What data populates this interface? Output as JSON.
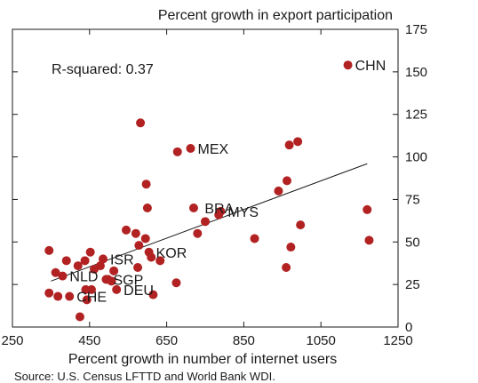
{
  "chart_data": {
    "type": "scatter",
    "title": "Percent growth in export participation",
    "xlabel": "Percent growth in number of internet users",
    "ylabel": "",
    "source": "Source: U.S. Census LFTTD and World Bank WDI.",
    "annotation": "R-squared: 0.37",
    "xlim": [
      250,
      1250
    ],
    "ylim": [
      0,
      175
    ],
    "xticks": [
      "250",
      "450",
      "650",
      "850",
      "1050",
      "1250"
    ],
    "yticks": [
      "0",
      "25",
      "50",
      "75",
      "100",
      "125",
      "150",
      "175"
    ],
    "marker_color": "#b22222",
    "trendline": {
      "x": [
        350,
        1170
      ],
      "y": [
        27,
        96
      ]
    },
    "points": [
      {
        "x": 345,
        "y": 45
      },
      {
        "x": 345,
        "y": 20
      },
      {
        "x": 362,
        "y": 32
      },
      {
        "x": 368,
        "y": 18
      },
      {
        "x": 380,
        "y": 30
      },
      {
        "x": 390,
        "y": 39
      },
      {
        "x": 398,
        "y": 18
      },
      {
        "x": 420,
        "y": 36
      },
      {
        "x": 425,
        "y": 6
      },
      {
        "x": 438,
        "y": 39
      },
      {
        "x": 440,
        "y": 22
      },
      {
        "x": 443,
        "y": 16
      },
      {
        "x": 452,
        "y": 44
      },
      {
        "x": 455,
        "y": 22
      },
      {
        "x": 462,
        "y": 34
      },
      {
        "x": 478,
        "y": 36
      },
      {
        "x": 485,
        "y": 40
      },
      {
        "x": 493,
        "y": 28
      },
      {
        "x": 498,
        "y": 28
      },
      {
        "x": 507,
        "y": 27
      },
      {
        "x": 513,
        "y": 33
      },
      {
        "x": 520,
        "y": 22
      },
      {
        "x": 545,
        "y": 57
      },
      {
        "x": 570,
        "y": 55
      },
      {
        "x": 575,
        "y": 35
      },
      {
        "x": 578,
        "y": 48
      },
      {
        "x": 582,
        "y": 120
      },
      {
        "x": 595,
        "y": 52
      },
      {
        "x": 597,
        "y": 84
      },
      {
        "x": 600,
        "y": 70
      },
      {
        "x": 604,
        "y": 44
      },
      {
        "x": 610,
        "y": 41
      },
      {
        "x": 615,
        "y": 19
      },
      {
        "x": 633,
        "y": 39
      },
      {
        "x": 675,
        "y": 26
      },
      {
        "x": 678,
        "y": 103
      },
      {
        "x": 712,
        "y": 105
      },
      {
        "x": 720,
        "y": 70
      },
      {
        "x": 730,
        "y": 55
      },
      {
        "x": 750,
        "y": 62
      },
      {
        "x": 785,
        "y": 66
      },
      {
        "x": 790,
        "y": 68
      },
      {
        "x": 878,
        "y": 52
      },
      {
        "x": 940,
        "y": 80
      },
      {
        "x": 960,
        "y": 35
      },
      {
        "x": 962,
        "y": 86
      },
      {
        "x": 968,
        "y": 107
      },
      {
        "x": 972,
        "y": 47
      },
      {
        "x": 990,
        "y": 109
      },
      {
        "x": 997,
        "y": 60
      },
      {
        "x": 1120,
        "y": 154
      },
      {
        "x": 1170,
        "y": 69
      },
      {
        "x": 1175,
        "y": 51
      }
    ],
    "labels": [
      {
        "text": "CHN",
        "x": 1120,
        "y": 154
      },
      {
        "text": "MEX",
        "x": 712,
        "y": 105
      },
      {
        "text": "BRA",
        "x": 730,
        "y": 70
      },
      {
        "text": "MYS",
        "x": 790,
        "y": 68
      },
      {
        "text": "KOR",
        "x": 604,
        "y": 44
      },
      {
        "text": "ISR",
        "x": 485,
        "y": 40
      },
      {
        "text": "SGP",
        "x": 493,
        "y": 28
      },
      {
        "text": "NLD",
        "x": 380,
        "y": 30
      },
      {
        "text": "DEU",
        "x": 520,
        "y": 22
      },
      {
        "text": "CHE",
        "x": 398,
        "y": 18
      }
    ]
  }
}
